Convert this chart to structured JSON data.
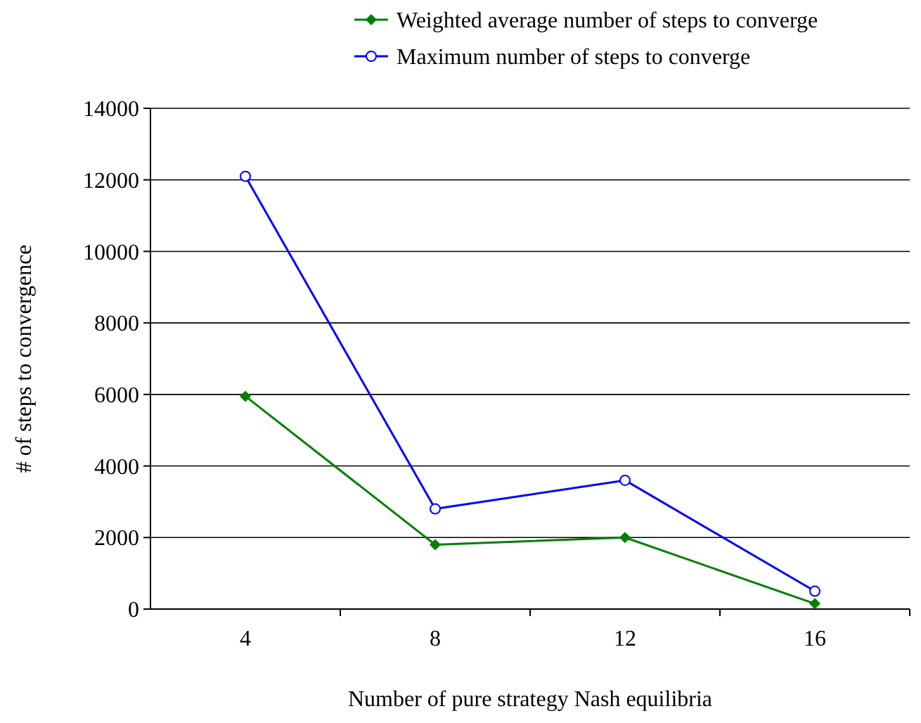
{
  "chart_data": {
    "type": "line",
    "xlabel": "Number of pure strategy Nash equilibria",
    "ylabel": "# of steps to convergence",
    "categories": [
      "4",
      "8",
      "12",
      "16"
    ],
    "series": [
      {
        "name": "Weighted average number of steps to converge",
        "color": "#008000",
        "marker": "diamond",
        "values": [
          5950,
          1800,
          2000,
          150
        ]
      },
      {
        "name": "Maximum number of steps to converge",
        "color": "#0000ff",
        "marker": "circle",
        "values": [
          12100,
          2800,
          3600,
          500
        ]
      }
    ],
    "ylim": [
      0,
      14000
    ],
    "yticks": [
      0,
      2000,
      4000,
      6000,
      8000,
      10000,
      12000,
      14000
    ],
    "grid": "y",
    "legend": "top",
    "line_style": "solid"
  }
}
